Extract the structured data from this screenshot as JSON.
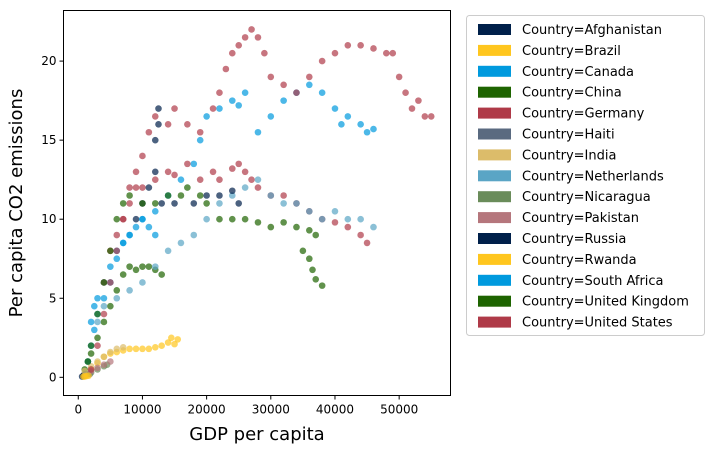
{
  "chart_data": {
    "type": "scatter",
    "title": "",
    "xlabel": "GDP per capita",
    "ylabel": "Per capita CO2 emissions",
    "xlim": [
      -2300,
      58000
    ],
    "ylim": [
      -1.15,
      23.2
    ],
    "xticks": [
      0,
      10000,
      20000,
      30000,
      40000,
      50000
    ],
    "xtick_labels": [
      "0",
      "10000",
      "20000",
      "30000",
      "40000",
      "50000"
    ],
    "yticks": [
      0,
      5,
      10,
      15,
      20
    ],
    "ytick_labels": [
      "0",
      "5",
      "10",
      "15",
      "20"
    ],
    "grid": false,
    "legend_position": "outside-right",
    "marker_alpha": 0.7,
    "series": [
      {
        "name": "Country=Afghanistan",
        "color": "#00204a",
        "points": [
          [
            600,
            0.05
          ],
          [
            800,
            0.1
          ],
          [
            1000,
            0.1
          ],
          [
            1200,
            0.2
          ],
          [
            900,
            0.15
          ]
        ]
      },
      {
        "name": "Country=Brazil",
        "color": "#ffc61e",
        "points": [
          [
            2000,
            0.5
          ],
          [
            3000,
            0.9
          ],
          [
            4000,
            1.3
          ],
          [
            5000,
            1.5
          ],
          [
            6000,
            1.6
          ],
          [
            7000,
            1.7
          ],
          [
            8000,
            1.8
          ],
          [
            9000,
            1.8
          ],
          [
            10000,
            1.8
          ],
          [
            11000,
            1.8
          ],
          [
            12000,
            1.9
          ],
          [
            13000,
            2.0
          ],
          [
            14000,
            2.2
          ],
          [
            14500,
            2.5
          ],
          [
            15500,
            2.4
          ],
          [
            15000,
            2.1
          ]
        ]
      },
      {
        "name": "Country=Canada",
        "color": "#009ade",
        "points": [
          [
            2000,
            3.5
          ],
          [
            2500,
            4.5
          ],
          [
            3000,
            5
          ],
          [
            4000,
            6
          ],
          [
            5000,
            7
          ],
          [
            6000,
            8
          ],
          [
            7000,
            8.5
          ],
          [
            8000,
            9
          ],
          [
            10000,
            10
          ],
          [
            12000,
            10.5
          ],
          [
            14000,
            11.5
          ],
          [
            16000,
            12.5
          ],
          [
            18000,
            13.5
          ],
          [
            19000,
            15
          ],
          [
            20000,
            16.5
          ],
          [
            22000,
            17
          ],
          [
            24000,
            17.5
          ],
          [
            25000,
            17.2
          ],
          [
            26000,
            18
          ],
          [
            28000,
            15.5
          ],
          [
            30000,
            16.5
          ],
          [
            32000,
            17.5
          ],
          [
            34000,
            18
          ],
          [
            36000,
            18.5
          ],
          [
            38000,
            18
          ],
          [
            40000,
            17
          ],
          [
            41000,
            16
          ],
          [
            42000,
            16.5
          ],
          [
            44000,
            16
          ],
          [
            45000,
            15.5
          ],
          [
            46000,
            15.7
          ]
        ]
      },
      {
        "name": "Country=China",
        "color": "#1e6400",
        "points": [
          [
            1000,
            0.5
          ],
          [
            1500,
            1
          ],
          [
            2000,
            1.5
          ],
          [
            3000,
            2.5
          ],
          [
            4000,
            3.5
          ],
          [
            5000,
            4.5
          ],
          [
            6000,
            5.5
          ],
          [
            7000,
            6.5
          ],
          [
            8000,
            7
          ],
          [
            9000,
            6.8
          ],
          [
            10000,
            7
          ],
          [
            11000,
            7
          ],
          [
            12000,
            6.8
          ],
          [
            13000,
            6.5
          ]
        ]
      },
      {
        "name": "Country=Germany",
        "color": "#af3a48",
        "points": [
          [
            4000,
            6
          ],
          [
            5000,
            8
          ],
          [
            6000,
            9
          ],
          [
            7000,
            10
          ],
          [
            8000,
            11
          ],
          [
            9000,
            12
          ],
          [
            10000,
            12
          ],
          [
            12000,
            12.5
          ],
          [
            14000,
            13
          ],
          [
            15000,
            12.8
          ],
          [
            17000,
            13.5
          ],
          [
            19000,
            12.5
          ],
          [
            21000,
            13
          ],
          [
            22000,
            12.5
          ],
          [
            24000,
            13.2
          ],
          [
            25000,
            13.5
          ],
          [
            26000,
            13
          ],
          [
            27000,
            12.5
          ],
          [
            28000,
            12
          ],
          [
            30000,
            11.5
          ],
          [
            32000,
            11.5
          ],
          [
            34000,
            11
          ],
          [
            36000,
            10.5
          ],
          [
            38000,
            10
          ],
          [
            40000,
            9.8
          ],
          [
            42000,
            9.5
          ],
          [
            44000,
            9
          ],
          [
            45000,
            8.5
          ]
        ]
      },
      {
        "name": "Country=Haiti",
        "color": "#5a6a80",
        "points": [
          [
            1000,
            0.1
          ],
          [
            1200,
            0.15
          ],
          [
            1500,
            0.2
          ],
          [
            1800,
            0.2
          ]
        ]
      },
      {
        "name": "Country=India",
        "color": "#dcbc6a",
        "points": [
          [
            1000,
            0.4
          ],
          [
            2000,
            0.7
          ],
          [
            3000,
            1
          ],
          [
            4000,
            1.3
          ],
          [
            5000,
            1.6
          ],
          [
            6000,
            1.8
          ],
          [
            7000,
            1.9
          ]
        ]
      },
      {
        "name": "Country=Netherlands",
        "color": "#5aa5c5",
        "points": [
          [
            3000,
            3.5
          ],
          [
            4000,
            4.5
          ],
          [
            6000,
            5
          ],
          [
            8000,
            5.5
          ],
          [
            10000,
            6
          ],
          [
            12000,
            7
          ],
          [
            14000,
            8
          ],
          [
            16000,
            8.5
          ],
          [
            18000,
            9
          ],
          [
            20000,
            10
          ],
          [
            22000,
            11
          ],
          [
            24000,
            11.5
          ],
          [
            26000,
            12
          ],
          [
            28000,
            12.5
          ],
          [
            30000,
            11.5
          ],
          [
            32000,
            11
          ],
          [
            34000,
            11
          ],
          [
            36000,
            10.5
          ],
          [
            38000,
            10
          ],
          [
            40000,
            10.5
          ],
          [
            42000,
            10
          ],
          [
            44000,
            10
          ],
          [
            46000,
            9.5
          ]
        ]
      },
      {
        "name": "Country=Nicaragua",
        "color": "#6a8c5a",
        "points": [
          [
            2000,
            0.3
          ],
          [
            3000,
            0.5
          ],
          [
            4000,
            0.7
          ],
          [
            4500,
            0.8
          ]
        ]
      },
      {
        "name": "Country=Pakistan",
        "color": "#b5767c",
        "points": [
          [
            2000,
            0.4
          ],
          [
            3000,
            0.6
          ],
          [
            4000,
            0.8
          ],
          [
            5000,
            1
          ]
        ]
      },
      {
        "name": "Country=Russia",
        "color": "#00204a",
        "points": [
          [
            9000,
            10
          ],
          [
            10000,
            11
          ],
          [
            11000,
            12
          ],
          [
            12000,
            13
          ],
          [
            12000,
            15
          ],
          [
            12500,
            16
          ],
          [
            12500,
            17
          ],
          [
            13000,
            11
          ],
          [
            15000,
            11
          ],
          [
            18000,
            11
          ],
          [
            20000,
            11.5
          ],
          [
            22000,
            11.5
          ],
          [
            24000,
            11.8
          ],
          [
            25000,
            11
          ]
        ]
      },
      {
        "name": "Country=Rwanda",
        "color": "#ffc61e",
        "points": [
          [
            800,
            0.05
          ],
          [
            1000,
            0.05
          ],
          [
            1300,
            0.08
          ],
          [
            1600,
            0.1
          ]
        ]
      },
      {
        "name": "Country=South Africa",
        "color": "#009ade",
        "points": [
          [
            1500,
            1
          ],
          [
            2000,
            2
          ],
          [
            2500,
            3
          ],
          [
            3000,
            4
          ],
          [
            4000,
            5
          ],
          [
            5000,
            6
          ],
          [
            6000,
            7.5
          ],
          [
            7000,
            8.5
          ],
          [
            8000,
            9
          ],
          [
            9000,
            9.5
          ],
          [
            10000,
            10
          ],
          [
            11000,
            9.5
          ],
          [
            12000,
            9
          ]
        ]
      },
      {
        "name": "Country=United Kingdom",
        "color": "#1e6400",
        "points": [
          [
            1500,
            1
          ],
          [
            2000,
            2
          ],
          [
            3000,
            4
          ],
          [
            4000,
            6
          ],
          [
            5000,
            8
          ],
          [
            6000,
            10
          ],
          [
            7000,
            11
          ],
          [
            8000,
            11.5
          ],
          [
            10000,
            11
          ],
          [
            12000,
            11
          ],
          [
            14000,
            11.5
          ],
          [
            16000,
            11.5
          ],
          [
            17000,
            12
          ],
          [
            19000,
            11.5
          ],
          [
            20000,
            11
          ],
          [
            22000,
            10
          ],
          [
            24000,
            10
          ],
          [
            26000,
            10
          ],
          [
            28000,
            9.8
          ],
          [
            30000,
            9.5
          ],
          [
            32000,
            9.8
          ],
          [
            34000,
            9.5
          ],
          [
            36000,
            9.3
          ],
          [
            37000,
            9
          ],
          [
            35000,
            8
          ],
          [
            36000,
            7.5
          ],
          [
            36500,
            6.8
          ],
          [
            37000,
            6.2
          ],
          [
            38000,
            5.8
          ]
        ]
      },
      {
        "name": "Country=United States",
        "color": "#af3a48",
        "points": [
          [
            2000,
            0.5
          ],
          [
            3000,
            2
          ],
          [
            4000,
            4
          ],
          [
            5000,
            6
          ],
          [
            6000,
            8
          ],
          [
            7000,
            10
          ],
          [
            8000,
            12
          ],
          [
            9000,
            13
          ],
          [
            10000,
            14
          ],
          [
            11000,
            15.5
          ],
          [
            12000,
            16.5
          ],
          [
            14000,
            16
          ],
          [
            15000,
            17
          ],
          [
            17000,
            16
          ],
          [
            19000,
            15.5
          ],
          [
            21000,
            17
          ],
          [
            22000,
            18
          ],
          [
            23000,
            19.5
          ],
          [
            24000,
            20.5
          ],
          [
            25000,
            21
          ],
          [
            26000,
            21.5
          ],
          [
            27000,
            22
          ],
          [
            28000,
            21.5
          ],
          [
            29000,
            20.5
          ],
          [
            30000,
            19
          ],
          [
            32000,
            18.5
          ],
          [
            34000,
            18
          ],
          [
            36000,
            19
          ],
          [
            38000,
            20
          ],
          [
            40000,
            20.5
          ],
          [
            42000,
            21
          ],
          [
            44000,
            21
          ],
          [
            46000,
            20.8
          ],
          [
            48000,
            20.5
          ],
          [
            49000,
            20.5
          ],
          [
            50000,
            19
          ],
          [
            51000,
            18
          ],
          [
            52000,
            17
          ],
          [
            53000,
            17.5
          ],
          [
            54000,
            16.5
          ],
          [
            55000,
            16.5
          ]
        ]
      }
    ]
  }
}
